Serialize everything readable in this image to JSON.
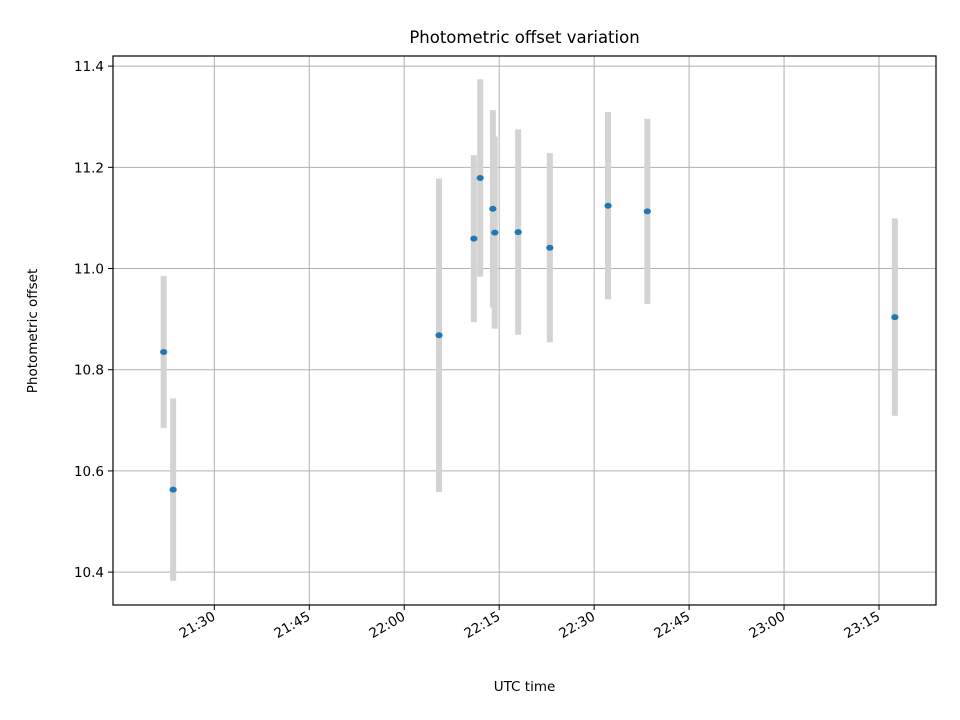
{
  "chart_data": {
    "type": "scatter",
    "title": "Photometric offset variation",
    "xlabel": "UTC time",
    "ylabel": "Photometric offset",
    "xlim": [
      "21:14",
      "23:24"
    ],
    "ylim": [
      10.335,
      11.42
    ],
    "x_ticks": [
      "21:30",
      "21:45",
      "22:00",
      "22:15",
      "22:30",
      "22:45",
      "23:00",
      "23:15"
    ],
    "y_ticks": [
      10.4,
      10.6,
      10.8,
      11.0,
      11.2,
      11.4
    ],
    "y_tick_labels": [
      "10.4",
      "10.6",
      "10.8",
      "11.0",
      "11.2",
      "11.4"
    ],
    "grid": true,
    "colors": {
      "marker": "#1f77b4",
      "errorbar": "#d3d3d3",
      "grid": "#b0b0b0"
    },
    "points": [
      {
        "x": "21:22",
        "y": 10.835,
        "err": 0.15
      },
      {
        "x": "21:23.5",
        "y": 10.563,
        "err": 0.18
      },
      {
        "x": "22:05.5",
        "y": 10.868,
        "err": 0.31
      },
      {
        "x": "22:11",
        "y": 11.059,
        "err": 0.165
      },
      {
        "x": "22:12",
        "y": 11.179,
        "err": 0.195
      },
      {
        "x": "22:14",
        "y": 11.118,
        "err": 0.195
      },
      {
        "x": "22:14.3",
        "y": 11.071,
        "err": 0.19
      },
      {
        "x": "22:18",
        "y": 11.072,
        "err": 0.203
      },
      {
        "x": "22:23",
        "y": 11.041,
        "err": 0.187
      },
      {
        "x": "22:32.2",
        "y": 11.124,
        "err": 0.185
      },
      {
        "x": "22:38.4",
        "y": 11.113,
        "err": 0.183
      },
      {
        "x": "23:17.5",
        "y": 10.904,
        "err": 0.195
      }
    ]
  }
}
